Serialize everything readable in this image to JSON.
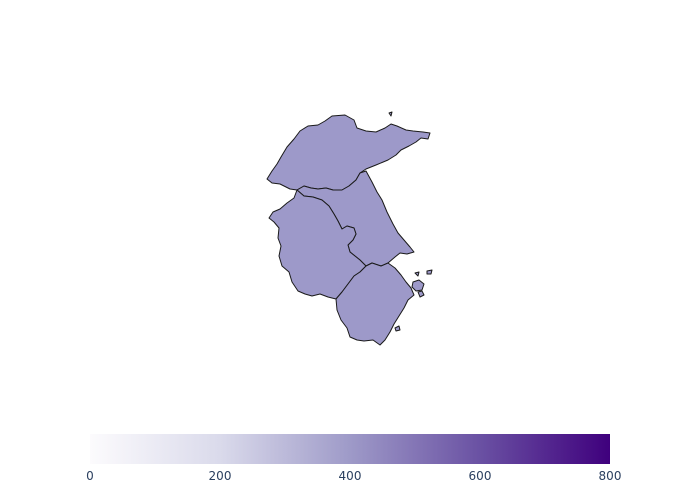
{
  "map": {
    "region_fill": "#9d99c9",
    "border_color": "#1a1a1a",
    "regions": [
      {
        "id": "shandong"
      },
      {
        "id": "jiangsu"
      },
      {
        "id": "anhui"
      },
      {
        "id": "zhejiang"
      },
      {
        "id": "zhoushan-islands"
      }
    ]
  },
  "colorbar": {
    "min": 0,
    "max": 800,
    "colorscale": [
      "#fcfbfd",
      "#dadaeb",
      "#9e9ac8",
      "#6a51a3",
      "#3f007d"
    ],
    "ticks": [
      "0",
      "200",
      "400",
      "600",
      "800"
    ]
  }
}
